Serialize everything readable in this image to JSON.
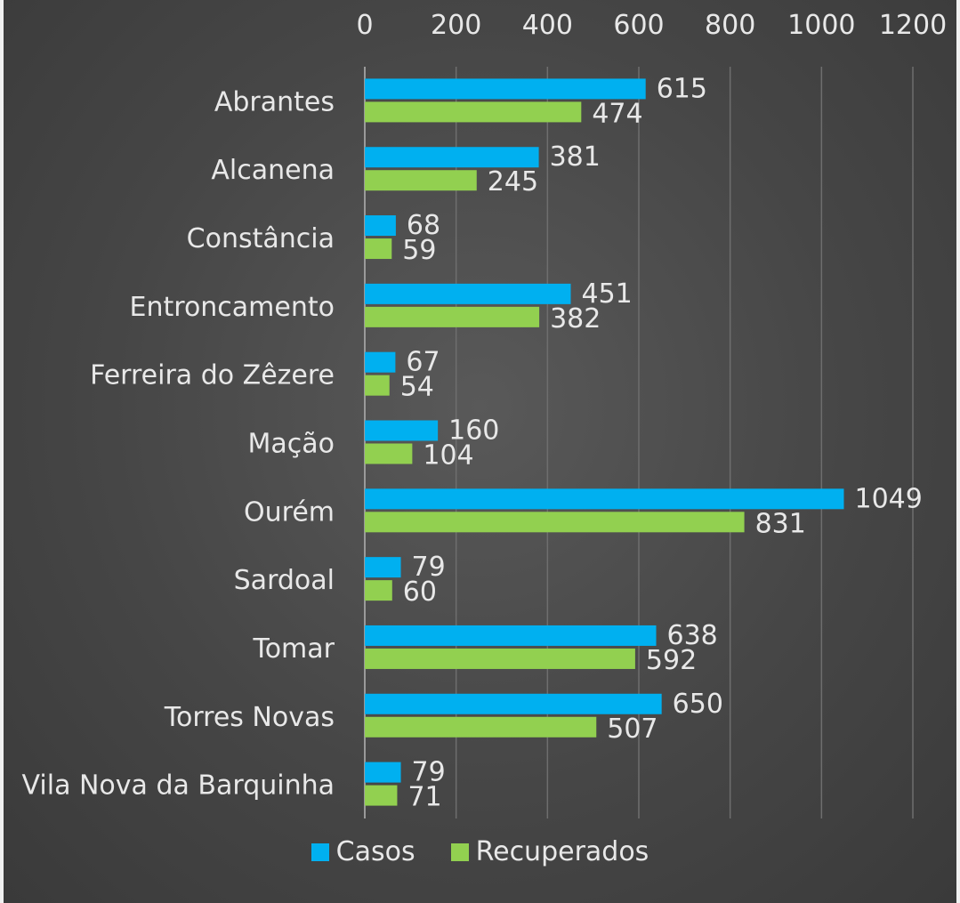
{
  "chart_data": {
    "type": "bar",
    "orientation": "horizontal",
    "categories": [
      "Abrantes",
      "Alcanena",
      "Constância",
      "Entroncamento",
      "Ferreira do Zêzere",
      "Mação",
      "Ourém",
      "Sardoal",
      "Tomar",
      "Torres Novas",
      "Vila Nova da Barquinha"
    ],
    "series": [
      {
        "name": "Casos",
        "color": "#00b0f0",
        "values": [
          615,
          381,
          68,
          451,
          67,
          160,
          1049,
          79,
          638,
          650,
          79
        ]
      },
      {
        "name": "Recuperados",
        "color": "#92d050",
        "values": [
          474,
          245,
          59,
          382,
          54,
          104,
          831,
          60,
          592,
          507,
          71
        ]
      }
    ],
    "x_ticks": [
      "0",
      "200",
      "400",
      "600",
      "800",
      "1000",
      "1200"
    ],
    "xlim": [
      0,
      1200
    ],
    "grid": true,
    "legend_position": "bottom",
    "title": "",
    "xlabel": "",
    "ylabel": ""
  }
}
